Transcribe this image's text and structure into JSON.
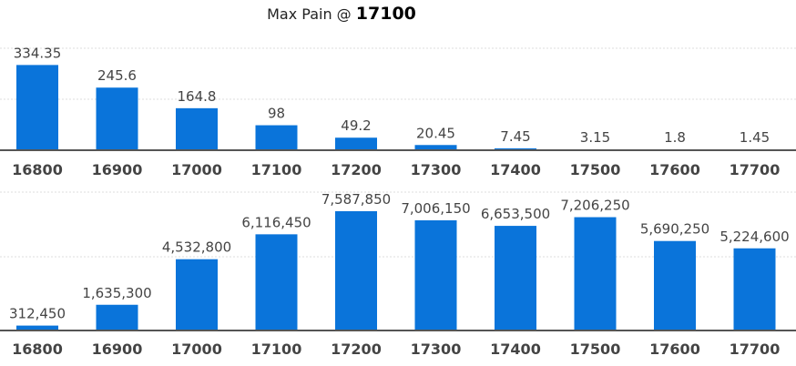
{
  "title": {
    "prefix": "Max Pain @",
    "value": "17100"
  },
  "colors": {
    "bar": "#0a74da",
    "axis": "#555555",
    "grid": "#dcdcdc",
    "text": "#444444"
  },
  "chart_data": [
    {
      "type": "bar",
      "categories": [
        "16800",
        "16900",
        "17000",
        "17100",
        "17200",
        "17300",
        "17400",
        "17500",
        "17600",
        "17700"
      ],
      "values": [
        334.35,
        245.6,
        164.8,
        98,
        49.2,
        20.45,
        7.45,
        3.15,
        1.8,
        1.45
      ],
      "value_labels": [
        "334.35",
        "245.6",
        "164.8",
        "98",
        "49.2",
        "20.45",
        "7.45",
        "3.15",
        "1.8",
        "1.45"
      ],
      "ylim": [
        0,
        400
      ],
      "grid": true
    },
    {
      "type": "bar",
      "categories": [
        "16800",
        "16900",
        "17000",
        "17100",
        "17200",
        "17300",
        "17400",
        "17500",
        "17600",
        "17700"
      ],
      "values": [
        312450,
        1635300,
        4532800,
        6116450,
        7587850,
        7006150,
        6653500,
        7206250,
        5690250,
        5224600
      ],
      "value_labels": [
        "312,450",
        "1,635,300",
        "4,532,800",
        "6,116,450",
        "7,587,850",
        "7,006,150",
        "6,653,500",
        "7,206,250",
        "5,690,250",
        "5,224,600"
      ],
      "ylim": [
        0,
        8800000
      ],
      "grid": true
    }
  ]
}
